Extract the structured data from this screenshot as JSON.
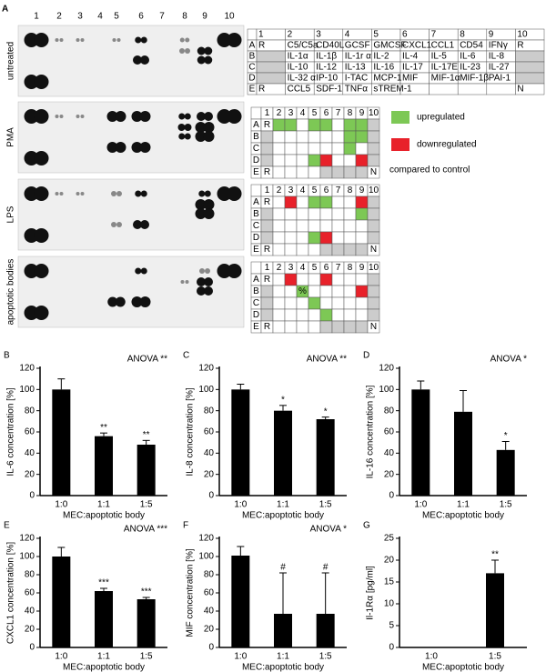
{
  "panel_a": {
    "label": "A",
    "columns": [
      "1",
      "2",
      "3",
      "4",
      "5",
      "6",
      "7",
      "8",
      "9",
      "10"
    ],
    "conditions": [
      "untreated",
      "PMA",
      "LPS",
      "apoptotic bodies"
    ],
    "legend": [
      {
        "label": "upregulated",
        "color": "#7dc855"
      },
      {
        "label": "downregulated",
        "color": "#e8212a"
      }
    ],
    "legend_note": "compared to control",
    "cell_palette": {
      "g": "#7dc855",
      "r": "#e8212a",
      "x": "#cccccc"
    },
    "tables": [
      {
        "row_labels": [
          "A",
          "B",
          "C",
          "D",
          "E"
        ],
        "col_labels": [
          "1",
          "2",
          "3",
          "4",
          "5",
          "6",
          "7",
          "8",
          "9",
          "10"
        ],
        "cells": [
          [
            "R",
            "C5/C5a",
            "CD40L",
            "GCSF",
            "GMCSF",
            "CXCL1",
            "CCL1",
            "CD54",
            "IFNγ",
            "R"
          ],
          [
            null,
            "IL-1α",
            "IL-1β",
            "IL-1r α",
            "IL-2",
            "IL-4",
            "IL-5",
            "IL-6",
            "IL-8",
            null
          ],
          [
            null,
            "IL-10",
            "IL-12",
            "IL-13",
            "IL-16",
            "IL-17",
            "IL-17E",
            "IL-23",
            "IL-27",
            null
          ],
          [
            null,
            "IL-32 α",
            "IP-10",
            "I-TAC",
            "MCP-1",
            "MIF",
            "MIF-1α",
            "MIF-1β",
            "PAI-1",
            null
          ],
          [
            "R",
            "CCL5",
            "SDF-1",
            "TNFα",
            "sTREM-1",
            null,
            null,
            null,
            null,
            "N"
          ]
        ],
        "colors": [
          "..........",
          "x........x",
          "x........x",
          "x........x",
          ".........."
        ]
      },
      {
        "row_labels": [
          "A",
          "B",
          "C",
          "D",
          "E"
        ],
        "col_labels": [
          "1",
          "2",
          "3",
          "4",
          "5",
          "6",
          "7",
          "8",
          "9",
          "10"
        ],
        "cells": [
          [
            "R",
            null,
            null,
            null,
            null,
            null,
            null,
            null,
            null,
            null
          ],
          [
            null,
            null,
            null,
            null,
            null,
            null,
            null,
            null,
            null,
            null
          ],
          [
            null,
            null,
            null,
            null,
            null,
            null,
            null,
            null,
            null,
            null
          ],
          [
            null,
            null,
            null,
            null,
            null,
            null,
            null,
            null,
            null,
            null
          ],
          [
            "R",
            null,
            null,
            null,
            null,
            null,
            null,
            null,
            null,
            "N"
          ]
        ],
        "colors": [
          ".gg.gg.ggx",
          "x......ggx",
          "x......g.x",
          "x...gr..rx",
          ".....xxxx."
        ]
      },
      {
        "row_labels": [
          "A",
          "B",
          "C",
          "D",
          "E"
        ],
        "col_labels": [
          "1",
          "2",
          "3",
          "4",
          "5",
          "6",
          "7",
          "8",
          "9",
          "10"
        ],
        "cells": [
          [
            "R",
            null,
            null,
            null,
            null,
            null,
            null,
            null,
            null,
            null
          ],
          [
            null,
            null,
            null,
            null,
            null,
            null,
            null,
            null,
            null,
            null
          ],
          [
            null,
            null,
            null,
            null,
            null,
            null,
            null,
            null,
            null,
            null
          ],
          [
            null,
            null,
            null,
            null,
            null,
            null,
            null,
            null,
            null,
            null
          ],
          [
            "R",
            null,
            null,
            null,
            null,
            null,
            null,
            null,
            null,
            "N"
          ]
        ],
        "colors": [
          "..r.gg..rx",
          "x.......gx",
          "x........x",
          "x...gr...x",
          ".....xxxx."
        ]
      },
      {
        "row_labels": [
          "A",
          "B",
          "C",
          "D",
          "E"
        ],
        "col_labels": [
          "1",
          "2",
          "3",
          "4",
          "5",
          "6",
          "7",
          "8",
          "9",
          "10"
        ],
        "cells": [
          [
            "R",
            null,
            null,
            null,
            null,
            null,
            null,
            null,
            null,
            null
          ],
          [
            null,
            null,
            null,
            "%",
            null,
            null,
            null,
            null,
            null,
            null
          ],
          [
            null,
            null,
            null,
            null,
            null,
            null,
            null,
            null,
            null,
            null
          ],
          [
            null,
            null,
            null,
            null,
            null,
            null,
            null,
            null,
            null,
            null
          ],
          [
            "R",
            null,
            null,
            null,
            null,
            null,
            null,
            null,
            null,
            "N"
          ]
        ],
        "colors": [
          "..r..r...x",
          "x..g....rx",
          "x...g....x",
          "x....g...x",
          ".....xxxx."
        ]
      }
    ]
  },
  "chart_data": [
    {
      "type": "bar",
      "panel_label": "B",
      "title": "ANOVA **",
      "ylabel": "IL-6 concentration [%]",
      "xlabel": "MEC:apoptotic body",
      "categories": [
        "1:0",
        "1:1",
        "1:5"
      ],
      "values": [
        100,
        56,
        48
      ],
      "errors": [
        10,
        3,
        4
      ],
      "annotations": [
        null,
        "**",
        "**"
      ],
      "color": "#000000",
      "ylim": [
        0,
        120
      ],
      "yticks": [
        0,
        20,
        40,
        60,
        80,
        100,
        120
      ]
    },
    {
      "type": "bar",
      "panel_label": "C",
      "title": "ANOVA **",
      "ylabel": "IL-8 concentration [%]",
      "xlabel": "MEC:apoptotic body",
      "categories": [
        "1:0",
        "1:1",
        "1:5"
      ],
      "values": [
        100,
        80,
        72
      ],
      "errors": [
        5,
        5,
        2
      ],
      "annotations": [
        null,
        "*",
        "*"
      ],
      "color": "#000000",
      "ylim": [
        0,
        120
      ],
      "yticks": [
        0,
        20,
        40,
        60,
        80,
        100,
        120
      ]
    },
    {
      "type": "bar",
      "panel_label": "D",
      "title": "ANOVA *",
      "ylabel": "IL-16 concentration [%]",
      "xlabel": "MEC:apoptotic body",
      "categories": [
        "1:0",
        "1:1",
        "1:5"
      ],
      "values": [
        100,
        79,
        43
      ],
      "errors": [
        8,
        20,
        8
      ],
      "annotations": [
        null,
        null,
        "*"
      ],
      "color": "#000000",
      "ylim": [
        0,
        120
      ],
      "yticks": [
        0,
        20,
        40,
        60,
        80,
        100,
        120
      ]
    },
    {
      "type": "bar",
      "panel_label": "E",
      "title": "ANOVA ***",
      "ylabel": "CXCL1 concentration [%]",
      "xlabel": "MEC:apoptotic body",
      "categories": [
        "1:0",
        "1:1",
        "1:5"
      ],
      "values": [
        100,
        62,
        53
      ],
      "errors": [
        10,
        3,
        2
      ],
      "annotations": [
        null,
        "***",
        "***"
      ],
      "color": "#000000",
      "ylim": [
        0,
        120
      ],
      "yticks": [
        0,
        20,
        40,
        60,
        80,
        100,
        120
      ]
    },
    {
      "type": "bar",
      "panel_label": "F",
      "title": "ANOVA *",
      "ylabel": "MIF concentration [%]",
      "xlabel": "MEC:apoptotic body",
      "categories": [
        "1:0",
        "1:1",
        "1:5"
      ],
      "values": [
        101,
        37,
        37
      ],
      "errors": [
        10,
        45,
        45
      ],
      "annotations": [
        null,
        "#",
        "#"
      ],
      "color": "#000000",
      "ylim": [
        0,
        120
      ],
      "yticks": [
        0,
        20,
        40,
        60,
        80,
        100,
        120
      ]
    },
    {
      "type": "bar",
      "panel_label": "G",
      "ylabel": "Il-1Rα [pg/ml]",
      "xlabel": "MEC:apoptotic body",
      "categories": [
        "1:0",
        "1:5"
      ],
      "values": [
        0,
        17
      ],
      "errors": [
        0,
        3
      ],
      "annotations": [
        null,
        "**"
      ],
      "color": "#000000",
      "ylim": [
        0,
        25
      ],
      "yticks": [
        0,
        5,
        10,
        15,
        20,
        25
      ]
    }
  ]
}
